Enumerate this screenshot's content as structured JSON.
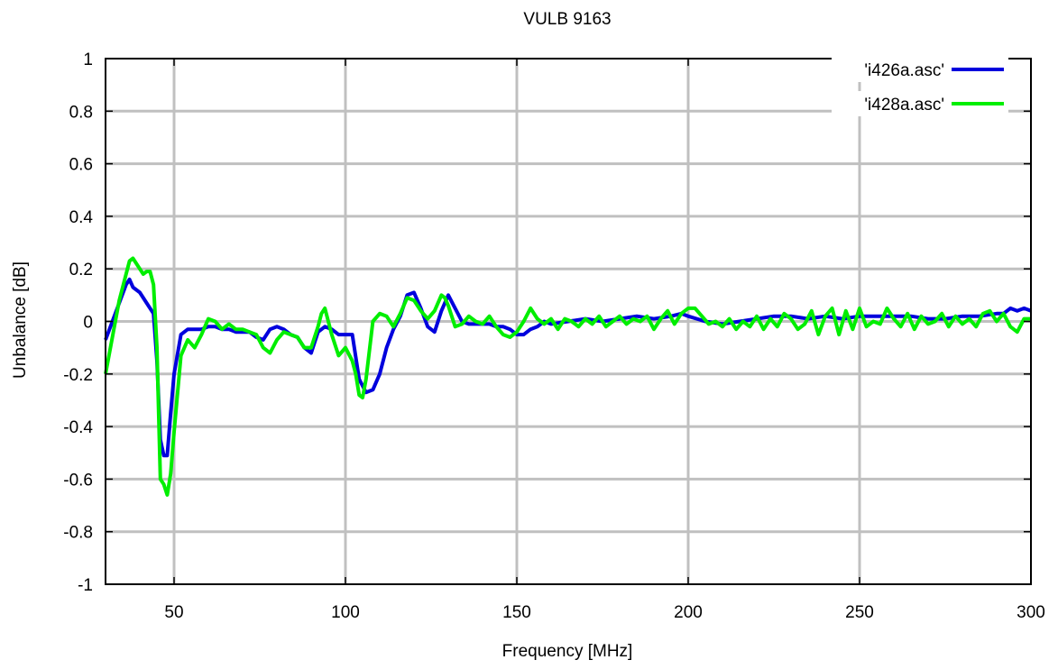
{
  "chart_data": {
    "type": "line",
    "title": "VULB 9163",
    "xlabel": "Frequency [MHz]",
    "ylabel": "Unbalance [dB]",
    "xlim": [
      30,
      300
    ],
    "ylim": [
      -1,
      1
    ],
    "xticks": [
      50,
      100,
      150,
      200,
      250,
      300
    ],
    "xtick_labels": [
      "50",
      "100",
      "150",
      "200",
      "250",
      "300"
    ],
    "yticks": [
      -1,
      -0.8,
      -0.6,
      -0.4,
      -0.2,
      0,
      0.2,
      0.4,
      0.6,
      0.8,
      1
    ],
    "ytick_labels": [
      "-1",
      "-0.8",
      "-0.6",
      "-0.4",
      "-0.2",
      "0",
      "0.2",
      "0.4",
      "0.6",
      "0.8",
      "1"
    ],
    "grid": true,
    "legend_position": "top-right",
    "series": [
      {
        "name": "'i426a.asc'",
        "color": "#0000dd",
        "x": [
          30,
          32,
          34,
          36,
          37,
          38,
          40,
          42,
          44,
          45,
          46,
          47,
          48,
          49,
          50,
          52,
          54,
          56,
          58,
          60,
          62,
          64,
          66,
          68,
          70,
          72,
          74,
          76,
          78,
          80,
          82,
          84,
          86,
          88,
          90,
          92,
          94,
          96,
          98,
          100,
          102,
          104,
          106,
          108,
          110,
          112,
          114,
          116,
          118,
          120,
          122,
          124,
          126,
          128,
          130,
          132,
          134,
          136,
          138,
          140,
          142,
          144,
          146,
          148,
          150,
          152,
          154,
          156,
          158,
          160,
          165,
          170,
          175,
          180,
          185,
          190,
          195,
          198,
          200,
          205,
          210,
          215,
          220,
          225,
          230,
          235,
          240,
          245,
          250,
          255,
          260,
          265,
          270,
          275,
          280,
          285,
          290,
          292,
          294,
          296,
          298,
          300
        ],
        "y": [
          -0.07,
          0.0,
          0.07,
          0.14,
          0.16,
          0.13,
          0.11,
          0.07,
          0.03,
          -0.15,
          -0.45,
          -0.51,
          -0.51,
          -0.35,
          -0.2,
          -0.05,
          -0.03,
          -0.03,
          -0.03,
          -0.02,
          -0.02,
          -0.03,
          -0.03,
          -0.04,
          -0.04,
          -0.04,
          -0.06,
          -0.07,
          -0.03,
          -0.02,
          -0.03,
          -0.05,
          -0.06,
          -0.1,
          -0.12,
          -0.04,
          -0.02,
          -0.03,
          -0.05,
          -0.05,
          -0.05,
          -0.22,
          -0.27,
          -0.26,
          -0.2,
          -0.1,
          -0.03,
          0.02,
          0.1,
          0.11,
          0.05,
          -0.02,
          -0.04,
          0.04,
          0.1,
          0.05,
          0.0,
          -0.01,
          -0.01,
          -0.01,
          -0.01,
          -0.02,
          -0.02,
          -0.03,
          -0.05,
          -0.05,
          -0.03,
          -0.02,
          0.0,
          -0.01,
          0.0,
          0.01,
          0.0,
          0.01,
          0.02,
          0.01,
          0.02,
          0.03,
          0.02,
          0.0,
          -0.01,
          0.0,
          0.01,
          0.02,
          0.02,
          0.01,
          0.02,
          0.01,
          0.02,
          0.02,
          0.02,
          0.02,
          0.01,
          0.01,
          0.02,
          0.02,
          0.03,
          0.03,
          0.05,
          0.04,
          0.05,
          0.04
        ]
      },
      {
        "name": "'i428a.asc'",
        "color": "#00ee00",
        "x": [
          30,
          32,
          34,
          36,
          37,
          38,
          40,
          41,
          42,
          43,
          44,
          45,
          46,
          47,
          48,
          49,
          50,
          52,
          54,
          56,
          58,
          60,
          62,
          64,
          66,
          68,
          70,
          72,
          74,
          76,
          78,
          80,
          82,
          84,
          86,
          88,
          90,
          92,
          93,
          94,
          96,
          98,
          100,
          102,
          103,
          104,
          105,
          106,
          108,
          110,
          112,
          114,
          116,
          118,
          120,
          122,
          124,
          126,
          128,
          129,
          130,
          132,
          134,
          136,
          138,
          140,
          142,
          144,
          146,
          148,
          150,
          152,
          154,
          156,
          158,
          160,
          162,
          164,
          166,
          168,
          170,
          172,
          174,
          176,
          178,
          180,
          182,
          184,
          186,
          188,
          190,
          192,
          194,
          196,
          198,
          200,
          202,
          204,
          206,
          208,
          210,
          212,
          214,
          216,
          218,
          220,
          222,
          224,
          226,
          228,
          230,
          232,
          234,
          236,
          238,
          240,
          242,
          244,
          246,
          248,
          250,
          252,
          254,
          256,
          258,
          260,
          262,
          264,
          266,
          268,
          270,
          272,
          274,
          276,
          278,
          280,
          282,
          284,
          286,
          288,
          290,
          292,
          294,
          296,
          298,
          300
        ],
        "y": [
          -0.2,
          -0.06,
          0.08,
          0.18,
          0.23,
          0.24,
          0.2,
          0.18,
          0.19,
          0.19,
          0.14,
          -0.1,
          -0.6,
          -0.62,
          -0.66,
          -0.58,
          -0.42,
          -0.13,
          -0.07,
          -0.1,
          -0.05,
          0.01,
          0.0,
          -0.03,
          -0.01,
          -0.03,
          -0.03,
          -0.04,
          -0.05,
          -0.1,
          -0.12,
          -0.07,
          -0.04,
          -0.05,
          -0.06,
          -0.1,
          -0.1,
          -0.02,
          0.03,
          0.05,
          -0.05,
          -0.13,
          -0.1,
          -0.15,
          -0.2,
          -0.28,
          -0.29,
          -0.22,
          0.0,
          0.03,
          0.02,
          -0.02,
          0.03,
          0.09,
          0.08,
          0.04,
          0.01,
          0.04,
          0.1,
          0.09,
          0.06,
          -0.02,
          -0.01,
          0.02,
          0.0,
          -0.01,
          0.02,
          -0.02,
          -0.05,
          -0.06,
          -0.04,
          0.0,
          0.05,
          0.01,
          -0.01,
          0.01,
          -0.03,
          0.01,
          0.0,
          -0.02,
          0.01,
          -0.01,
          0.02,
          -0.02,
          0.0,
          0.02,
          -0.01,
          0.01,
          0.0,
          0.02,
          -0.03,
          0.01,
          0.04,
          -0.01,
          0.03,
          0.05,
          0.05,
          0.02,
          -0.01,
          0.0,
          -0.02,
          0.01,
          -0.03,
          0.0,
          -0.02,
          0.02,
          -0.03,
          0.01,
          -0.02,
          0.03,
          0.01,
          -0.03,
          -0.01,
          0.04,
          -0.05,
          0.02,
          0.05,
          -0.05,
          0.04,
          -0.03,
          0.05,
          -0.02,
          0.0,
          -0.01,
          0.05,
          0.01,
          -0.02,
          0.03,
          -0.03,
          0.02,
          -0.01,
          0.0,
          0.03,
          -0.02,
          0.02,
          -0.01,
          0.01,
          -0.02,
          0.03,
          0.04,
          0.0,
          0.03,
          -0.02,
          -0.04,
          0.01,
          0.01
        ]
      }
    ]
  }
}
